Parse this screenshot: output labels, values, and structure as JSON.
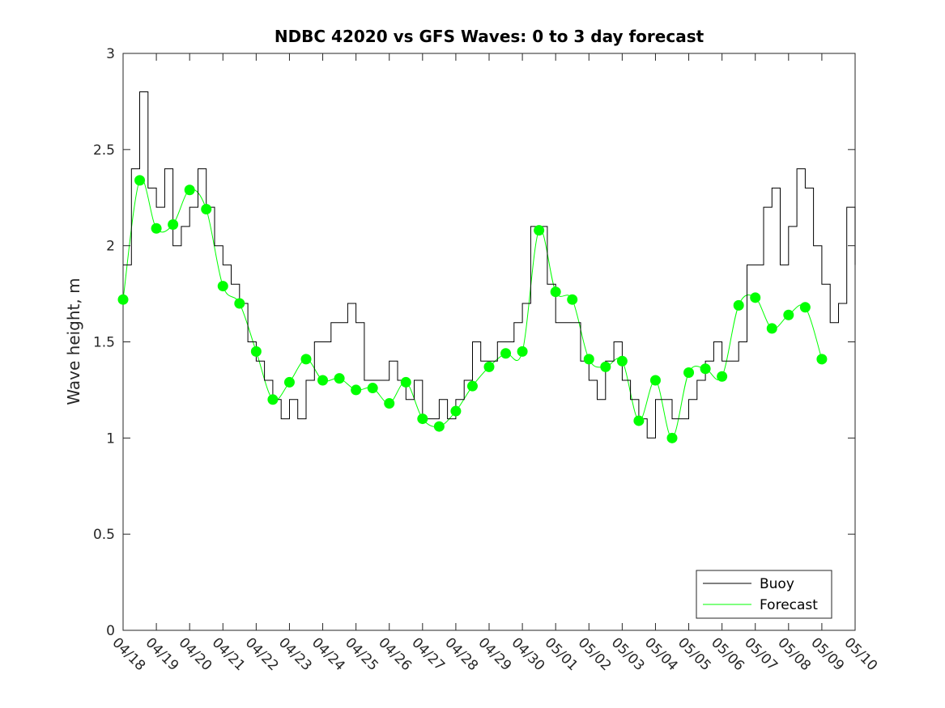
{
  "chart_data": {
    "type": "line",
    "title": "NDBC 42020 vs GFS Waves: 0 to 3 day forecast",
    "xlabel": "",
    "ylabel": "Wave height, m",
    "ylim": [
      0,
      3
    ],
    "xlim": [
      "04/18",
      "05/10"
    ],
    "y_ticks": [
      "0",
      "0.5",
      "1",
      "1.5",
      "2",
      "2.5",
      "3"
    ],
    "x_ticks": [
      "04/18",
      "04/19",
      "04/20",
      "04/21",
      "04/22",
      "04/23",
      "04/24",
      "04/25",
      "04/26",
      "04/27",
      "04/28",
      "04/29",
      "04/30",
      "05/01",
      "05/02",
      "05/03",
      "05/04",
      "05/05",
      "05/06",
      "05/07",
      "05/08",
      "05/09",
      "05/10"
    ],
    "grid": false,
    "legend_position": "bottom-right",
    "colors": {
      "buoy": "#000000",
      "forecast": "#00ff00",
      "axis": "#262626"
    },
    "series": [
      {
        "name": "Buoy",
        "color": "#000000",
        "x": [
          "04/18 00:00",
          "04/18 06:00",
          "04/18 12:00",
          "04/18 18:00",
          "04/19 00:00",
          "04/19 06:00",
          "04/19 12:00",
          "04/19 18:00",
          "04/20 00:00",
          "04/20 06:00",
          "04/20 12:00",
          "04/20 18:00",
          "04/21 00:00",
          "04/21 06:00",
          "04/21 12:00",
          "04/21 18:00",
          "04/22 00:00",
          "04/22 06:00",
          "04/22 12:00",
          "04/22 18:00",
          "04/23 00:00",
          "04/23 06:00",
          "04/23 12:00",
          "04/23 18:00",
          "04/24 00:00",
          "04/24 06:00",
          "04/24 12:00",
          "04/24 18:00",
          "04/25 00:00",
          "04/25 06:00",
          "04/25 12:00",
          "04/25 18:00",
          "04/26 00:00",
          "04/26 06:00",
          "04/26 12:00",
          "04/26 18:00",
          "04/27 00:00",
          "04/27 06:00",
          "04/27 12:00",
          "04/27 18:00",
          "04/28 00:00",
          "04/28 06:00",
          "04/28 12:00",
          "04/28 18:00",
          "04/29 00:00",
          "04/29 06:00",
          "04/29 12:00",
          "04/29 18:00",
          "04/30 00:00",
          "04/30 06:00",
          "04/30 12:00",
          "04/30 18:00",
          "05/01 00:00",
          "05/01 06:00",
          "05/01 12:00",
          "05/01 18:00",
          "05/02 00:00",
          "05/02 06:00",
          "05/02 12:00",
          "05/02 18:00",
          "05/03 00:00",
          "05/03 06:00",
          "05/03 12:00",
          "05/03 18:00",
          "05/04 00:00",
          "05/04 06:00",
          "05/04 12:00",
          "05/04 18:00",
          "05/05 00:00",
          "05/05 06:00",
          "05/05 12:00",
          "05/05 18:00",
          "05/06 00:00",
          "05/06 06:00",
          "05/06 12:00",
          "05/06 18:00",
          "05/07 00:00",
          "05/07 06:00",
          "05/07 12:00",
          "05/07 18:00",
          "05/08 00:00",
          "05/08 06:00",
          "05/08 12:00",
          "05/08 18:00",
          "05/09 00:00",
          "05/09 06:00",
          "05/09 12:00",
          "05/09 18:00",
          "05/10 00:00"
        ],
        "values": [
          1.9,
          2.4,
          2.8,
          2.3,
          2.2,
          2.4,
          2.0,
          2.1,
          2.2,
          2.4,
          2.2,
          2.0,
          1.9,
          1.8,
          1.7,
          1.5,
          1.4,
          1.3,
          1.2,
          1.1,
          1.2,
          1.1,
          1.3,
          1.5,
          1.5,
          1.6,
          1.6,
          1.7,
          1.6,
          1.3,
          1.3,
          1.3,
          1.4,
          1.3,
          1.2,
          1.3,
          1.1,
          1.1,
          1.2,
          1.1,
          1.2,
          1.3,
          1.5,
          1.4,
          1.4,
          1.5,
          1.5,
          1.6,
          1.7,
          2.1,
          2.1,
          1.8,
          1.6,
          1.6,
          1.6,
          1.4,
          1.3,
          1.2,
          1.4,
          1.5,
          1.3,
          1.2,
          1.1,
          1.0,
          1.2,
          1.2,
          1.1,
          1.1,
          1.2,
          1.3,
          1.4,
          1.5,
          1.4,
          1.4,
          1.5,
          1.9,
          1.9,
          2.2,
          2.3,
          1.9,
          2.1,
          2.4,
          2.3,
          2.0,
          1.8,
          1.6,
          1.7,
          2.2,
          1.9
        ]
      },
      {
        "name": "Forecast",
        "color": "#00ff00",
        "x": [
          "04/18 00:00",
          "04/18 12:00",
          "04/19 00:00",
          "04/19 12:00",
          "04/20 00:00",
          "04/20 12:00",
          "04/21 00:00",
          "04/21 12:00",
          "04/22 00:00",
          "04/22 12:00",
          "04/23 00:00",
          "04/23 12:00",
          "04/24 00:00",
          "04/24 12:00",
          "04/25 00:00",
          "04/25 12:00",
          "04/26 00:00",
          "04/26 12:00",
          "04/27 00:00",
          "04/27 12:00",
          "04/28 00:00",
          "04/28 12:00",
          "04/29 00:00",
          "04/29 12:00",
          "04/30 00:00",
          "04/30 12:00",
          "05/01 00:00",
          "05/01 12:00",
          "05/02 00:00",
          "05/02 12:00",
          "05/03 00:00",
          "05/03 12:00",
          "05/04 00:00",
          "05/04 12:00",
          "05/05 00:00",
          "05/05 12:00",
          "05/06 00:00",
          "05/06 12:00",
          "05/07 00:00",
          "05/07 12:00",
          "05/08 00:00",
          "05/08 12:00",
          "05/09 00:00"
        ],
        "values": [
          1.72,
          2.34,
          2.09,
          2.11,
          2.29,
          2.19,
          1.79,
          1.7,
          1.45,
          1.2,
          1.29,
          1.41,
          1.3,
          1.31,
          1.25,
          1.26,
          1.18,
          1.29,
          1.1,
          1.06,
          1.14,
          1.27,
          1.37,
          1.44,
          1.45,
          2.08,
          1.76,
          1.72,
          1.41,
          1.37,
          1.4,
          1.09,
          1.3,
          1.0,
          1.34,
          1.36,
          1.32,
          1.69,
          1.73,
          1.57,
          1.64,
          1.68,
          1.41
        ]
      }
    ]
  }
}
